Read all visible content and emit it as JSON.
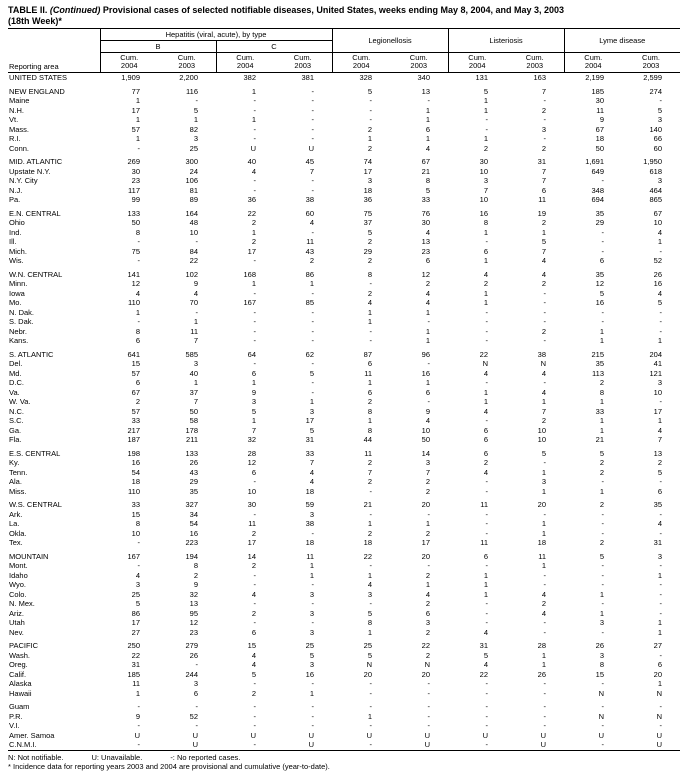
{
  "title": {
    "prefix": "TABLE II. ",
    "continued": "(Continued)",
    "rest": " Provisional cases of selected notifiable diseases, United States, weeks ending May 8, 2004, and May 3, 2003",
    "week_line": "(18th Week)*"
  },
  "table": {
    "corner_label": "Reporting area",
    "groups": {
      "hepatitis": "Hepatitis (viral, acute), by type",
      "hep_b": "B",
      "hep_c": "C",
      "legionellosis": "Legionellosis",
      "listeriosis": "Listeriosis",
      "lyme": "Lyme disease"
    },
    "cum_label": "Cum.",
    "col_years": [
      "2004",
      "2003",
      "2004",
      "2003",
      "2004",
      "2003",
      "2004",
      "2003",
      "2004",
      "2003"
    ],
    "rows": [
      {
        "area": "UNITED STATES",
        "values": [
          "1,909",
          "2,200",
          "382",
          "381",
          "328",
          "340",
          "131",
          "163",
          "2,199",
          "2,599"
        ]
      },
      {
        "spacer": true
      },
      {
        "area": "NEW ENGLAND",
        "values": [
          "77",
          "116",
          "1",
          "-",
          "5",
          "13",
          "5",
          "7",
          "185",
          "274"
        ]
      },
      {
        "area": "Maine",
        "values": [
          "1",
          "-",
          "-",
          "-",
          "-",
          "-",
          "1",
          "-",
          "30",
          "-"
        ]
      },
      {
        "area": "N.H.",
        "values": [
          "17",
          "5",
          "-",
          "-",
          "-",
          "1",
          "1",
          "2",
          "11",
          "5"
        ]
      },
      {
        "area": "Vt.",
        "values": [
          "1",
          "1",
          "1",
          "-",
          "-",
          "1",
          "-",
          "-",
          "9",
          "3"
        ]
      },
      {
        "area": "Mass.",
        "values": [
          "57",
          "82",
          "-",
          "-",
          "2",
          "6",
          "-",
          "3",
          "67",
          "140"
        ]
      },
      {
        "area": "R.I.",
        "values": [
          "1",
          "3",
          "-",
          "-",
          "1",
          "1",
          "1",
          "-",
          "18",
          "66"
        ]
      },
      {
        "area": "Conn.",
        "values": [
          "-",
          "25",
          "U",
          "U",
          "2",
          "4",
          "2",
          "2",
          "50",
          "60"
        ]
      },
      {
        "spacer": true
      },
      {
        "area": "MID. ATLANTIC",
        "values": [
          "269",
          "300",
          "40",
          "45",
          "74",
          "67",
          "30",
          "31",
          "1,691",
          "1,950"
        ]
      },
      {
        "area": "Upstate N.Y.",
        "values": [
          "30",
          "24",
          "4",
          "7",
          "17",
          "21",
          "10",
          "7",
          "649",
          "618"
        ]
      },
      {
        "area": "N.Y. City",
        "values": [
          "23",
          "106",
          "-",
          "-",
          "3",
          "8",
          "3",
          "7",
          "-",
          "3"
        ]
      },
      {
        "area": "N.J.",
        "values": [
          "117",
          "81",
          "-",
          "-",
          "18",
          "5",
          "7",
          "6",
          "348",
          "464"
        ]
      },
      {
        "area": "Pa.",
        "values": [
          "99",
          "89",
          "36",
          "38",
          "36",
          "33",
          "10",
          "11",
          "694",
          "865"
        ]
      },
      {
        "spacer": true
      },
      {
        "area": "E.N. CENTRAL",
        "values": [
          "133",
          "164",
          "22",
          "60",
          "75",
          "76",
          "16",
          "19",
          "35",
          "67"
        ]
      },
      {
        "area": "Ohio",
        "values": [
          "50",
          "48",
          "2",
          "4",
          "37",
          "30",
          "8",
          "2",
          "29",
          "10"
        ]
      },
      {
        "area": "Ind.",
        "values": [
          "8",
          "10",
          "1",
          "-",
          "5",
          "4",
          "1",
          "1",
          "-",
          "4"
        ]
      },
      {
        "area": "Ill.",
        "values": [
          "-",
          "-",
          "2",
          "11",
          "2",
          "13",
          "-",
          "5",
          "-",
          "1"
        ]
      },
      {
        "area": "Mich.",
        "values": [
          "75",
          "84",
          "17",
          "43",
          "29",
          "23",
          "6",
          "7",
          "-",
          "-"
        ]
      },
      {
        "area": "Wis.",
        "values": [
          "-",
          "22",
          "-",
          "2",
          "2",
          "6",
          "1",
          "4",
          "6",
          "52"
        ]
      },
      {
        "spacer": true
      },
      {
        "area": "W.N. CENTRAL",
        "values": [
          "141",
          "102",
          "168",
          "86",
          "8",
          "12",
          "4",
          "4",
          "35",
          "26"
        ]
      },
      {
        "area": "Minn.",
        "values": [
          "12",
          "9",
          "1",
          "1",
          "-",
          "2",
          "2",
          "2",
          "12",
          "16"
        ]
      },
      {
        "area": "Iowa",
        "values": [
          "4",
          "4",
          "-",
          "-",
          "2",
          "4",
          "1",
          "-",
          "5",
          "4"
        ]
      },
      {
        "area": "Mo.",
        "values": [
          "110",
          "70",
          "167",
          "85",
          "4",
          "4",
          "1",
          "-",
          "16",
          "5"
        ]
      },
      {
        "area": "N. Dak.",
        "values": [
          "1",
          "-",
          "-",
          "-",
          "1",
          "1",
          "-",
          "-",
          "-",
          "-"
        ]
      },
      {
        "area": "S. Dak.",
        "values": [
          "-",
          "1",
          "-",
          "-",
          "1",
          "-",
          "-",
          "-",
          "-",
          "-"
        ]
      },
      {
        "area": "Nebr.",
        "values": [
          "8",
          "11",
          "-",
          "-",
          "-",
          "1",
          "-",
          "2",
          "1",
          "-"
        ]
      },
      {
        "area": "Kans.",
        "values": [
          "6",
          "7",
          "-",
          "-",
          "-",
          "1",
          "-",
          "-",
          "1",
          "1"
        ]
      },
      {
        "spacer": true
      },
      {
        "area": "S. ATLANTIC",
        "values": [
          "641",
          "585",
          "64",
          "62",
          "87",
          "96",
          "22",
          "38",
          "215",
          "204"
        ]
      },
      {
        "area": "Del.",
        "values": [
          "15",
          "3",
          "-",
          "-",
          "6",
          "-",
          "N",
          "N",
          "35",
          "41"
        ]
      },
      {
        "area": "Md.",
        "values": [
          "57",
          "40",
          "6",
          "5",
          "11",
          "16",
          "4",
          "4",
          "113",
          "121"
        ]
      },
      {
        "area": "D.C.",
        "values": [
          "6",
          "1",
          "1",
          "-",
          "1",
          "1",
          "-",
          "-",
          "2",
          "3"
        ]
      },
      {
        "area": "Va.",
        "values": [
          "67",
          "37",
          "9",
          "-",
          "6",
          "6",
          "1",
          "4",
          "8",
          "10"
        ]
      },
      {
        "area": "W. Va.",
        "values": [
          "2",
          "7",
          "3",
          "1",
          "2",
          "-",
          "1",
          "1",
          "1",
          "-"
        ]
      },
      {
        "area": "N.C.",
        "values": [
          "57",
          "50",
          "5",
          "3",
          "8",
          "9",
          "4",
          "7",
          "33",
          "17"
        ]
      },
      {
        "area": "S.C.",
        "values": [
          "33",
          "58",
          "1",
          "17",
          "1",
          "4",
          "-",
          "2",
          "1",
          "1"
        ]
      },
      {
        "area": "Ga.",
        "values": [
          "217",
          "178",
          "7",
          "5",
          "8",
          "10",
          "6",
          "10",
          "1",
          "4"
        ]
      },
      {
        "area": "Fla.",
        "values": [
          "187",
          "211",
          "32",
          "31",
          "44",
          "50",
          "6",
          "10",
          "21",
          "7"
        ]
      },
      {
        "spacer": true
      },
      {
        "area": "E.S. CENTRAL",
        "values": [
          "198",
          "133",
          "28",
          "33",
          "11",
          "14",
          "6",
          "5",
          "5",
          "13"
        ]
      },
      {
        "area": "Ky.",
        "values": [
          "16",
          "26",
          "12",
          "7",
          "2",
          "3",
          "2",
          "-",
          "2",
          "2"
        ]
      },
      {
        "area": "Tenn.",
        "values": [
          "54",
          "43",
          "6",
          "4",
          "7",
          "7",
          "4",
          "1",
          "2",
          "5"
        ]
      },
      {
        "area": "Ala.",
        "values": [
          "18",
          "29",
          "-",
          "4",
          "2",
          "2",
          "-",
          "3",
          "-",
          "-"
        ]
      },
      {
        "area": "Miss.",
        "values": [
          "110",
          "35",
          "10",
          "18",
          "-",
          "2",
          "-",
          "1",
          "1",
          "6"
        ]
      },
      {
        "spacer": true
      },
      {
        "area": "W.S. CENTRAL",
        "values": [
          "33",
          "327",
          "30",
          "59",
          "21",
          "20",
          "11",
          "20",
          "2",
          "35"
        ]
      },
      {
        "area": "Ark.",
        "values": [
          "15",
          "34",
          "-",
          "3",
          "-",
          "-",
          "-",
          "-",
          "-",
          "-"
        ]
      },
      {
        "area": "La.",
        "values": [
          "8",
          "54",
          "11",
          "38",
          "1",
          "1",
          "-",
          "1",
          "-",
          "4"
        ]
      },
      {
        "area": "Okla.",
        "values": [
          "10",
          "16",
          "2",
          "-",
          "2",
          "2",
          "-",
          "1",
          "-",
          "-"
        ]
      },
      {
        "area": "Tex.",
        "values": [
          "-",
          "223",
          "17",
          "18",
          "18",
          "17",
          "11",
          "18",
          "2",
          "31"
        ]
      },
      {
        "spacer": true
      },
      {
        "area": "MOUNTAIN",
        "values": [
          "167",
          "194",
          "14",
          "11",
          "22",
          "20",
          "6",
          "11",
          "5",
          "3"
        ]
      },
      {
        "area": "Mont.",
        "values": [
          "-",
          "8",
          "2",
          "1",
          "-",
          "-",
          "-",
          "1",
          "-",
          "-"
        ]
      },
      {
        "area": "Idaho",
        "values": [
          "4",
          "2",
          "-",
          "1",
          "1",
          "2",
          "1",
          "-",
          "-",
          "1"
        ]
      },
      {
        "area": "Wyo.",
        "values": [
          "3",
          "9",
          "-",
          "-",
          "4",
          "1",
          "1",
          "-",
          "-",
          "-"
        ]
      },
      {
        "area": "Colo.",
        "values": [
          "25",
          "32",
          "4",
          "3",
          "3",
          "4",
          "1",
          "4",
          "1",
          "-"
        ]
      },
      {
        "area": "N. Mex.",
        "values": [
          "5",
          "13",
          "-",
          "-",
          "-",
          "2",
          "-",
          "2",
          "-",
          "-"
        ]
      },
      {
        "area": "Ariz.",
        "values": [
          "86",
          "95",
          "2",
          "3",
          "5",
          "6",
          "-",
          "4",
          "1",
          "-"
        ]
      },
      {
        "area": "Utah",
        "values": [
          "17",
          "12",
          "-",
          "-",
          "8",
          "3",
          "-",
          "-",
          "3",
          "1"
        ]
      },
      {
        "area": "Nev.",
        "values": [
          "27",
          "23",
          "6",
          "3",
          "1",
          "2",
          "4",
          "-",
          "-",
          "1"
        ]
      },
      {
        "spacer": true
      },
      {
        "area": "PACIFIC",
        "values": [
          "250",
          "279",
          "15",
          "25",
          "25",
          "22",
          "31",
          "28",
          "26",
          "27"
        ]
      },
      {
        "area": "Wash.",
        "values": [
          "22",
          "26",
          "4",
          "5",
          "5",
          "2",
          "5",
          "1",
          "3",
          "-"
        ]
      },
      {
        "area": "Oreg.",
        "values": [
          "31",
          "-",
          "4",
          "3",
          "N",
          "N",
          "4",
          "1",
          "8",
          "6"
        ]
      },
      {
        "area": "Calif.",
        "values": [
          "185",
          "244",
          "5",
          "16",
          "20",
          "20",
          "22",
          "26",
          "15",
          "20"
        ]
      },
      {
        "area": "Alaska",
        "values": [
          "11",
          "3",
          "-",
          "-",
          "-",
          "-",
          "-",
          "-",
          "-",
          "1"
        ]
      },
      {
        "area": "Hawaii",
        "values": [
          "1",
          "6",
          "2",
          "1",
          "-",
          "-",
          "-",
          "-",
          "N",
          "N"
        ]
      },
      {
        "spacer": true
      },
      {
        "area": "Guam",
        "values": [
          "-",
          "-",
          "-",
          "-",
          "-",
          "-",
          "-",
          "-",
          "-",
          "-"
        ]
      },
      {
        "area": "P.R.",
        "values": [
          "9",
          "52",
          "-",
          "-",
          "1",
          "-",
          "-",
          "-",
          "N",
          "N"
        ]
      },
      {
        "area": "V.I.",
        "values": [
          "-",
          "-",
          "-",
          "-",
          "-",
          "-",
          "-",
          "-",
          "-",
          "-"
        ]
      },
      {
        "area": "Amer. Samoa",
        "values": [
          "U",
          "U",
          "U",
          "U",
          "U",
          "U",
          "U",
          "U",
          "U",
          "U"
        ]
      },
      {
        "area": "C.N.M.I.",
        "values": [
          "-",
          "U",
          "-",
          "U",
          "-",
          "U",
          "-",
          "U",
          "-",
          "U"
        ]
      }
    ]
  },
  "footnotes": {
    "legend": [
      "N: Not notifiable.",
      "U: Unavailable.",
      "-: No reported cases."
    ],
    "note": "* Incidence data for reporting years 2003 and 2004 are provisional and cumulative (year-to-date)."
  }
}
